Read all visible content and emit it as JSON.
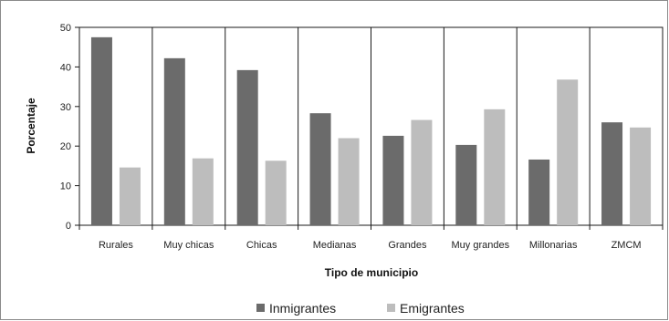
{
  "chart_data": {
    "type": "bar",
    "categories": [
      "Rurales",
      "Muy chicas",
      "Chicas",
      "Medianas",
      "Grandes",
      "Muy grandes",
      "Millonarias",
      "ZMCM"
    ],
    "series": [
      {
        "name": "Inmigrantes",
        "color": "#6b6b6b",
        "values": [
          47.5,
          42.2,
          39.2,
          28.3,
          22.6,
          20.3,
          16.6,
          26.0
        ]
      },
      {
        "name": "Emigrantes",
        "color": "#bdbdbd",
        "values": [
          14.6,
          16.9,
          16.3,
          22.0,
          26.6,
          29.3,
          36.8,
          24.7
        ]
      }
    ],
    "title": "",
    "xlabel": "Tipo de municipio",
    "ylabel": "Porcentaje",
    "ylim": [
      0,
      50
    ],
    "yticks": [
      "0",
      "10",
      "20",
      "30",
      "40",
      "50"
    ],
    "grid": "vertical category separators",
    "legend": "bottom-center"
  }
}
